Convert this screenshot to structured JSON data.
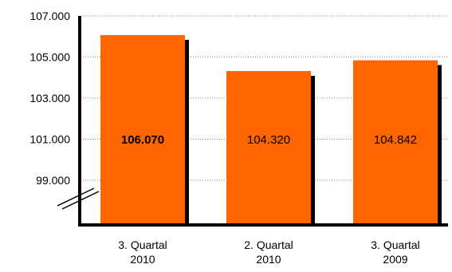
{
  "chart_data": {
    "type": "bar",
    "categories": [
      [
        "3. Quartal",
        "2010"
      ],
      [
        "2. Quartal",
        "2010"
      ],
      [
        "3. Quartal",
        "2009"
      ]
    ],
    "values": [
      106070,
      104320,
      104842
    ],
    "value_labels": [
      "106.070",
      "104.320",
      "104.842"
    ],
    "value_label_bold": [
      true,
      false,
      false
    ],
    "yticks": [
      {
        "value": 99000,
        "label": "99.000"
      },
      {
        "value": 101000,
        "label": "101.000"
      },
      {
        "value": 103000,
        "label": "103.000"
      },
      {
        "value": 105000,
        "label": "105.000"
      },
      {
        "value": 107000,
        "label": "107.000"
      }
    ],
    "ylim": [
      99000,
      107000
    ],
    "axis_break": true,
    "grid": "horizontal-dotted",
    "bar_color": "#ff6600",
    "shadow_color": "#000000",
    "title": "",
    "xlabel": "",
    "ylabel": ""
  }
}
